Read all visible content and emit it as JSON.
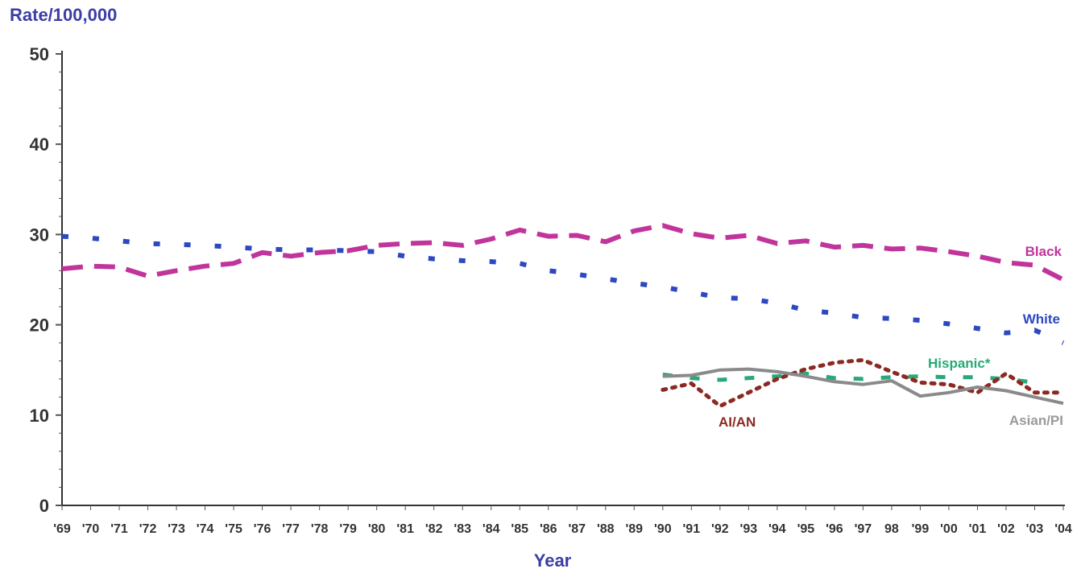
{
  "chart_data": {
    "type": "line",
    "title": "",
    "ylabel": "Rate/100,000",
    "xlabel": "Year",
    "ylim": [
      0,
      50
    ],
    "yticks": [
      "0",
      "10",
      "20",
      "30",
      "40",
      "50"
    ],
    "grid": false,
    "legend": "inline labels at line ends",
    "categories": [
      "'69",
      "'70",
      "'71",
      "'72",
      "'73",
      "'74",
      "'75",
      "'76",
      "'77",
      "'78",
      "'79",
      "'80",
      "'81",
      "'82",
      "'83",
      "'84",
      "'85",
      "'86",
      "'87",
      "'88",
      "'89",
      "'90",
      "'91",
      "'92",
      "'93",
      "'94",
      "'95",
      "'96",
      "'97",
      "98",
      "'99",
      "'00",
      "'01",
      "'02",
      "'03",
      "'04"
    ],
    "series": [
      {
        "name": "Black",
        "color": "#c0359b",
        "style": "long-dash",
        "values": [
          26.2,
          26.5,
          26.4,
          25.4,
          26.0,
          26.5,
          26.8,
          28.0,
          27.6,
          28.0,
          28.2,
          28.8,
          29.0,
          29.1,
          28.8,
          29.5,
          30.5,
          29.8,
          29.9,
          29.2,
          30.4,
          31.0,
          30.1,
          29.6,
          29.9,
          29.0,
          29.3,
          28.6,
          28.8,
          28.4,
          28.5,
          28.1,
          27.6,
          26.9,
          26.6,
          25.0
        ]
      },
      {
        "name": "White",
        "color": "#2d48c0",
        "style": "short-dash",
        "values": [
          29.8,
          29.6,
          29.3,
          29.0,
          28.9,
          28.8,
          28.6,
          28.4,
          28.3,
          28.3,
          28.2,
          28.1,
          27.6,
          27.3,
          27.1,
          27.0,
          26.8,
          26.0,
          25.6,
          25.1,
          24.6,
          24.2,
          23.6,
          23.0,
          22.9,
          22.4,
          21.6,
          21.3,
          20.8,
          20.7,
          20.5,
          20.1,
          19.6,
          19.1,
          19.4,
          18.0
        ]
      },
      {
        "name": "Hispanic*",
        "color": "#2aa877",
        "style": "dash",
        "values": [
          null,
          null,
          null,
          null,
          null,
          null,
          null,
          null,
          null,
          null,
          null,
          null,
          null,
          null,
          null,
          null,
          null,
          null,
          null,
          null,
          null,
          14.5,
          14.1,
          13.9,
          14.1,
          14.3,
          14.6,
          14.1,
          14.0,
          14.2,
          14.3,
          14.2,
          14.2,
          14.0,
          13.6,
          null
        ]
      },
      {
        "name": "AI/AN",
        "color": "#8b2a22",
        "style": "dotted",
        "values": [
          null,
          null,
          null,
          null,
          null,
          null,
          null,
          null,
          null,
          null,
          null,
          null,
          null,
          null,
          null,
          null,
          null,
          null,
          null,
          null,
          null,
          12.8,
          13.5,
          11.0,
          12.5,
          14.0,
          15.1,
          15.8,
          16.1,
          14.8,
          13.6,
          13.4,
          12.5,
          14.6,
          12.5,
          12.5
        ]
      },
      {
        "name": "Asian/PI",
        "color": "#8a8a8a",
        "style": "solid",
        "values": [
          null,
          null,
          null,
          null,
          null,
          null,
          null,
          null,
          null,
          null,
          null,
          null,
          null,
          null,
          null,
          null,
          null,
          null,
          null,
          null,
          null,
          14.3,
          14.4,
          15.0,
          15.1,
          14.8,
          14.3,
          13.7,
          13.4,
          13.8,
          12.1,
          12.5,
          13.1,
          12.7,
          12.0,
          11.3
        ]
      }
    ]
  }
}
